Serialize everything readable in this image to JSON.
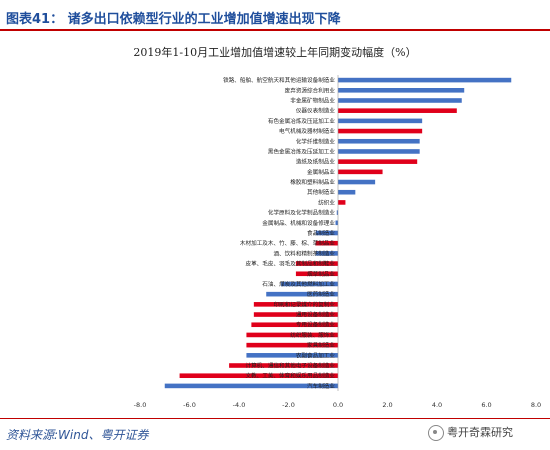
{
  "header": {
    "title": "图表41：  诸多出口依赖型行业的工业增加值增速出现下降"
  },
  "source_text": "资料来源:Wind、粤开证券",
  "watermark_text": "粤开奇霖研究",
  "chart_data": {
    "type": "bar",
    "orientation": "horizontal",
    "title": "2019年1-10月工业增加值增速较上年同期变动幅度（%）",
    "xlim": [
      -8.0,
      8.0
    ],
    "xticks": [
      -8.0,
      -6.0,
      -4.0,
      -2.0,
      0.0,
      2.0,
      4.0,
      6.0,
      8.0
    ],
    "grid": false,
    "legend": "none",
    "colors": {
      "blue": "#4472c4",
      "red": "#e0001b"
    },
    "categories": [
      "铁路、船舶、航空航天和其他运输设备制造业",
      "废弃资源综合利用业",
      "非金属矿物制品业",
      "仪器仪表制造业",
      "有色金属冶炼及压延加工业",
      "电气机械及器材制造业",
      "化学纤维制造业",
      "黑色金属冶炼及压延加工业",
      "造纸及纸制品业",
      "金属制品业",
      "橡胶和塑料制品业",
      "其他制造业",
      "纺织业",
      "化学原料及化学制品制造业",
      "金属制品、机械和设备修理业",
      "食品制造业",
      "木材加工及木、竹、藤、棕、草制品业",
      "酒、饮料和精制茶制造业",
      "皮革、毛皮、羽毛及其制品和制鞋业",
      "烟草制品业",
      "石油、煤炭及其他燃料加工业",
      "医药制造业",
      "印刷和记录媒介的复制业",
      "通用设备制造业",
      "专用设备制造业",
      "纺织服装、服饰业",
      "家具制造业",
      "农副食品加工业",
      "计算机、通信和其他电子设备制造业",
      "文教、工美、体育和娱乐用品制造业",
      "汽车制造业"
    ],
    "values": [
      7.0,
      5.1,
      5.0,
      4.8,
      3.4,
      3.4,
      3.3,
      3.3,
      3.2,
      1.8,
      1.5,
      0.7,
      0.3,
      -0.05,
      -0.1,
      -0.9,
      -0.9,
      -0.9,
      -1.7,
      -1.7,
      -2.3,
      -2.9,
      -3.4,
      -3.4,
      -3.5,
      -3.7,
      -3.7,
      -3.7,
      -4.4,
      -6.4,
      -7.0
    ],
    "bar_colors": [
      "blue",
      "blue",
      "blue",
      "red",
      "blue",
      "red",
      "blue",
      "blue",
      "red",
      "red",
      "blue",
      "blue",
      "red",
      "blue",
      "blue",
      "blue",
      "red",
      "blue",
      "red",
      "red",
      "blue",
      "blue",
      "red",
      "red",
      "red",
      "red",
      "red",
      "blue",
      "red",
      "red",
      "blue"
    ]
  }
}
